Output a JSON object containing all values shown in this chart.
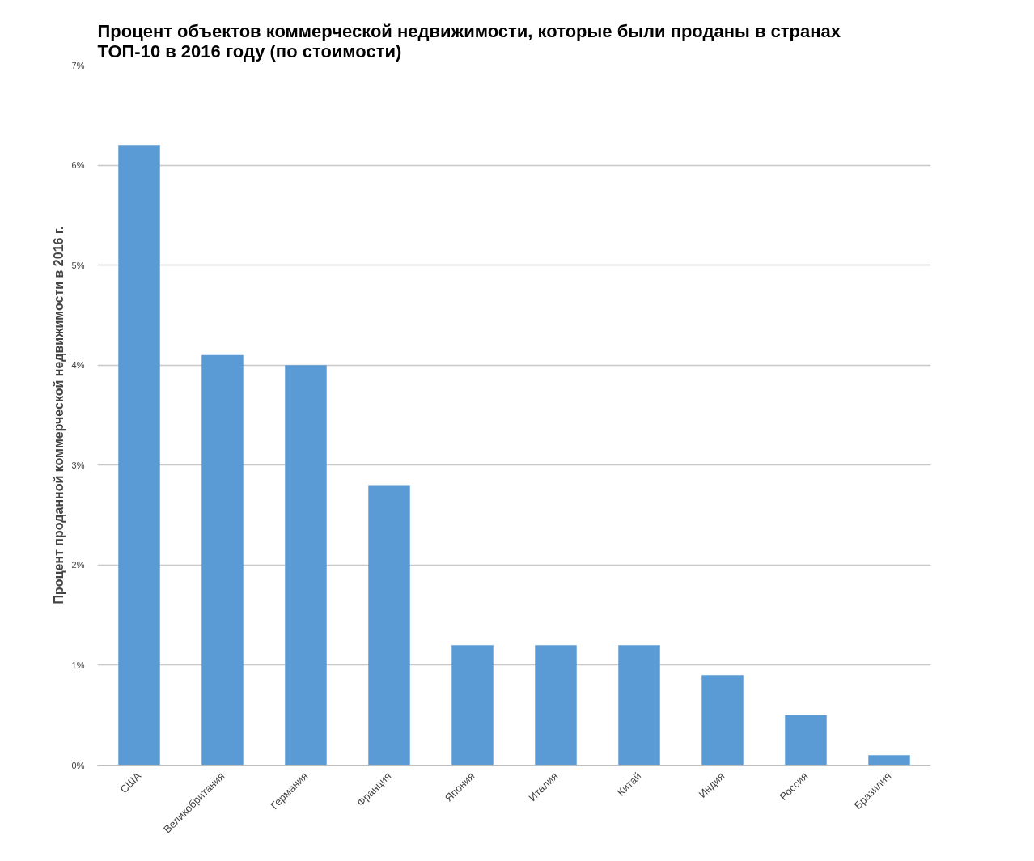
{
  "chart_data": {
    "type": "bar",
    "title": "Процент объектов коммерческой недвижимости, которые были проданы в странах ТОП-10 в 2016 году (по стоимости)",
    "ylabel": "Процент проданной коммерческой недвижимости в 2016 г.",
    "categories": [
      "США",
      "Великобритания",
      "Германия",
      "Франция",
      "Япония",
      "Италия",
      "Китай",
      "Индия",
      "Россия",
      "Бразилия"
    ],
    "values": [
      6.2,
      4.1,
      4.0,
      2.8,
      1.2,
      1.2,
      1.2,
      0.9,
      0.5,
      0.1
    ],
    "color": "#5b9bd5",
    "ylim": [
      0,
      7
    ],
    "yticks": [
      {
        "value": 0,
        "label": "0%"
      },
      {
        "value": 1,
        "label": "1%"
      },
      {
        "value": 2,
        "label": "2%"
      },
      {
        "value": 3,
        "label": "3%"
      },
      {
        "value": 4,
        "label": "4%"
      },
      {
        "value": 5,
        "label": "5%"
      },
      {
        "value": 6,
        "label": "6%"
      },
      {
        "value": 7,
        "label": "7%"
      }
    ],
    "grid": "y"
  }
}
